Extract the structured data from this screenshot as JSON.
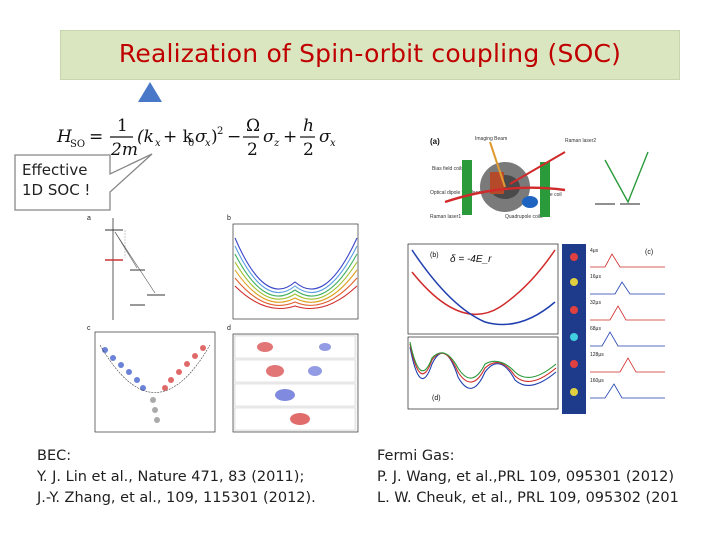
{
  "slide": {
    "title": "Realization of Spin-orbit coupling (SOC)",
    "callout": {
      "line1": "Effective",
      "line2": "1D SOC !"
    },
    "references": {
      "bec": {
        "heading": "BEC:",
        "line1": "Y. J. Lin et al., Nature 471, 83 (2011);",
        "line2": "J.-Y. Zhang,  et  al., 109, 115301 (2012)."
      },
      "fermi": {
        "heading": "Fermi  Gas:",
        "line1": "P. J. Wang, et  al.,PRL 109,  095301 (2012)",
        "line2": "L. W. Cheuk, et  al., PRL 109,  095302 (201"
      }
    }
  },
  "colors": {
    "title": "#c00000",
    "title_band": "#d9e6c0",
    "marker": "#4a78c8",
    "callout_fill": "#ffffff",
    "callout_border": "#888888"
  },
  "figures": {
    "left": {
      "panel_labels": [
        "a",
        "b",
        "c",
        "d"
      ]
    },
    "right": {
      "panel_labels": [
        "(a)",
        "(b)",
        "(c)",
        "(d)"
      ],
      "detuning_label": "δ = -4E_r",
      "setup_labels": [
        "Imaging Beam",
        "Raman laser2",
        "Bias field coils",
        "Optical dipole trap laser",
        "Raman laser1",
        "Quadrupole coils",
        "Baffle coil"
      ],
      "time_labels": [
        "4μs",
        "16μs",
        "32μs",
        "68μs",
        "128μs",
        "160μs"
      ]
    }
  }
}
